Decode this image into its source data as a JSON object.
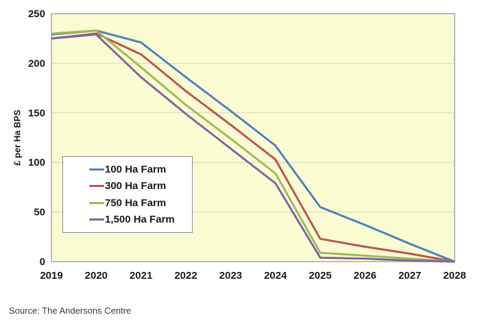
{
  "source_note": "Source: The Andersons Centre",
  "chart_data": {
    "type": "line",
    "title": "",
    "xlabel": "",
    "ylabel": "£ per Ha BPS",
    "ylim": [
      0,
      250
    ],
    "yticks": [
      0,
      50,
      100,
      150,
      200,
      250
    ],
    "grid": "horizontal",
    "legend_position": "inside-left",
    "categories": [
      "2019",
      "2020",
      "2021",
      "2022",
      "2023",
      "2024",
      "2025",
      "2026",
      "2027",
      "2028"
    ],
    "series": [
      {
        "name": "100 Ha Farm",
        "color": "#4F81BD",
        "values": [
          229,
          233,
          221,
          186,
          152,
          117,
          55,
          37,
          18,
          0
        ]
      },
      {
        "name": "300 Ha Farm",
        "color": "#C0504D",
        "values": [
          225,
          230,
          209,
          172,
          138,
          103,
          23,
          15,
          8,
          0
        ]
      },
      {
        "name": "750 Ha Farm",
        "color": "#9BBB59",
        "values": [
          230,
          233,
          196,
          158,
          124,
          89,
          9,
          6,
          3,
          0
        ]
      },
      {
        "name": "1,500 Ha Farm",
        "color": "#8064A2",
        "values": [
          225,
          229,
          186,
          149,
          114,
          79,
          4,
          3,
          1,
          0
        ]
      }
    ],
    "plot_background": "#FCFCD2",
    "plot_border_color": "#A6A6A6",
    "gridline_color": "#D2D2C2",
    "text_color": "#1A1A1A"
  }
}
